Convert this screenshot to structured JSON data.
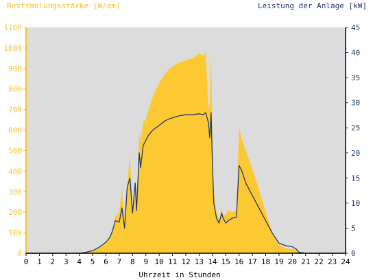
{
  "chart_data": {
    "type": "area",
    "left_axis_title": "Bestrahlungsstärke [W/qm]",
    "right_axis_title": "Leistung der Anlage [kW]",
    "xlabel": "Uhrzeit in Stunden",
    "xlim": [
      0,
      24
    ],
    "x_ticks": [
      "0",
      "1",
      "2",
      "3",
      "4",
      "5",
      "6",
      "7",
      "8",
      "9",
      "10",
      "11",
      "12",
      "13",
      "14",
      "15",
      "16",
      "17",
      "18",
      "19",
      "20",
      "21",
      "22",
      "23",
      "24"
    ],
    "ylim_left": [
      0,
      1100
    ],
    "y_ticks_left": [
      "0",
      "100",
      "200",
      "300",
      "400",
      "500",
      "600",
      "700",
      "800",
      "900",
      "1000",
      "1100"
    ],
    "ylim_right": [
      0,
      45
    ],
    "y_ticks_right": [
      "0",
      "5",
      "10",
      "15",
      "20",
      "25",
      "30",
      "35",
      "40",
      "45"
    ],
    "grid": false,
    "colors": {
      "plot_background": "#dcdcdc",
      "irradiance_fill": "#fdc933",
      "power_line": "#1f3a6b",
      "left_axis": "#f5c033",
      "right_axis": "#1f3a6b"
    },
    "series": [
      {
        "axis": "left",
        "kind": "area",
        "x": [
          0,
          4,
          4.5,
          5,
          5.5,
          6,
          6.3,
          6.5,
          6.7,
          7,
          7.2,
          7.4,
          7.6,
          7.8,
          8,
          8.2,
          8.3,
          8.5,
          8.6,
          8.8,
          9,
          9.2,
          9.5,
          10,
          10.5,
          11,
          11.5,
          12,
          12.5,
          13,
          13.3,
          13.5,
          13.7,
          13.8,
          13.9,
          14,
          14.1,
          14.3,
          14.5,
          14.7,
          14.8,
          15,
          15.2,
          15.5,
          15.8,
          16,
          16.2,
          16.5,
          17,
          17.5,
          18,
          18.5,
          19,
          19.5,
          20,
          20.3,
          20.5,
          21,
          24
        ],
        "y": [
          0,
          0,
          3,
          10,
          25,
          50,
          80,
          110,
          180,
          200,
          310,
          170,
          340,
          480,
          200,
          350,
          210,
          590,
          540,
          640,
          650,
          700,
          760,
          830,
          880,
          910,
          930,
          940,
          950,
          975,
          960,
          980,
          700,
          730,
          980,
          540,
          300,
          200,
          160,
          220,
          180,
          190,
          210,
          200,
          210,
          610,
          560,
          500,
          410,
          310,
          200,
          100,
          40,
          25,
          20,
          15,
          5,
          0,
          0
        ]
      },
      {
        "axis": "right",
        "kind": "line",
        "x": [
          0,
          4,
          4.5,
          5,
          5.5,
          6,
          6.3,
          6.5,
          6.7,
          7,
          7.2,
          7.4,
          7.6,
          7.8,
          8,
          8.2,
          8.3,
          8.5,
          8.6,
          8.8,
          9,
          9.2,
          9.5,
          10,
          10.5,
          11,
          11.5,
          12,
          12.5,
          13,
          13.3,
          13.5,
          13.7,
          13.8,
          13.9,
          14,
          14.1,
          14.3,
          14.5,
          14.7,
          14.8,
          15,
          15.2,
          15.5,
          15.8,
          16,
          16.2,
          16.5,
          17,
          17.5,
          18,
          18.5,
          19,
          19.5,
          20,
          20.3,
          20.5,
          21,
          24
        ],
        "y": [
          0,
          0,
          0.2,
          0.5,
          1.2,
          2.2,
          3.2,
          4.5,
          6.5,
          6.2,
          9,
          5,
          13.2,
          15,
          8,
          14,
          8.5,
          20,
          17,
          21.5,
          22.5,
          23.5,
          24.5,
          25.5,
          26.5,
          27,
          27.4,
          27.6,
          27.6,
          27.8,
          27.6,
          28,
          26,
          23,
          28,
          18,
          10,
          7,
          6,
          8,
          7,
          6,
          6.5,
          7,
          7.2,
          17.5,
          16.5,
          14,
          11.5,
          9,
          6.5,
          4,
          2,
          1.5,
          1.3,
          0.8,
          0.2,
          0,
          0
        ]
      }
    ]
  }
}
